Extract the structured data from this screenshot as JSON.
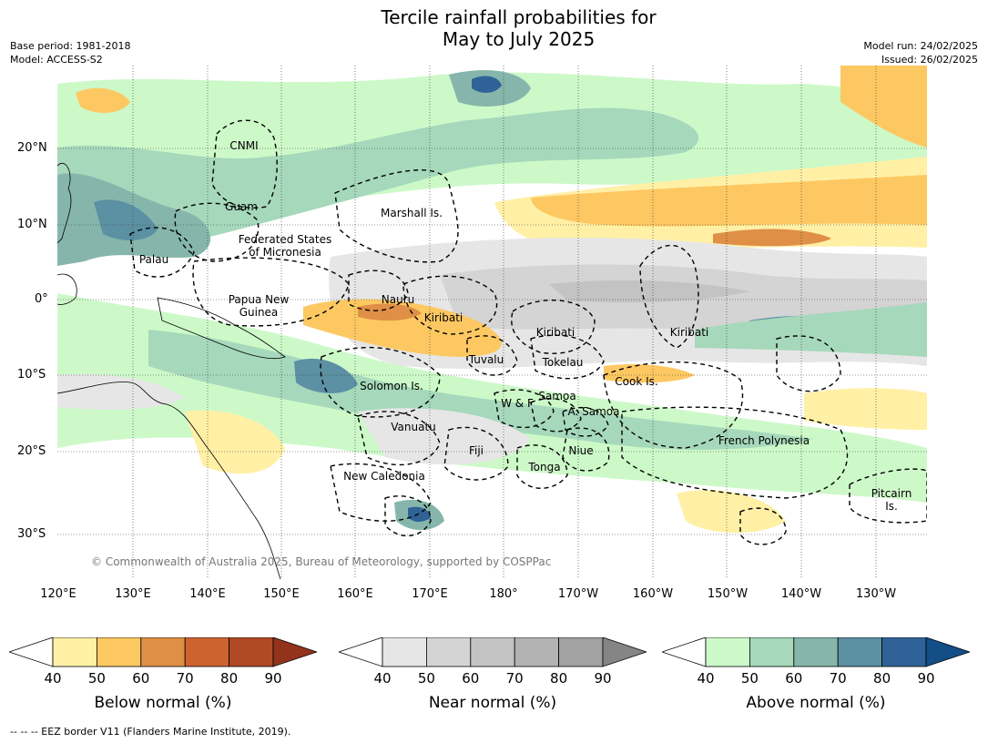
{
  "title": {
    "line1": "Tercile rainfall probabilities for",
    "line2": "May to July 2025"
  },
  "meta": {
    "base_period": "Base period: 1981-2018",
    "model": "Model: ACCESS-S2",
    "model_run": "Model run: 24/02/2025",
    "issued": "Issued: 26/02/2025"
  },
  "map": {
    "lat_ticks": [
      "20°N",
      "10°N",
      "0°",
      "10°S",
      "20°S",
      "30°S"
    ],
    "lon_ticks": [
      "120°E",
      "130°E",
      "140°E",
      "150°E",
      "160°E",
      "170°E",
      "180°",
      "170°W",
      "160°W",
      "150°W",
      "140°W",
      "130°W"
    ],
    "regions": [
      "CNMI",
      "Guam",
      "Marshall Is.",
      "Federated States\nof Micronesia",
      "Palau",
      "Papua New\nGuinea",
      "Nauru",
      "Kiribati",
      "Kiribati",
      "Kiribati",
      "Tuvalu",
      "Tokelau",
      "Solomon Is.",
      "Cook Is.",
      "Samoa",
      "W & F",
      "A. Samoa",
      "Vanuatu",
      "Fiji",
      "Niue",
      "Tonga",
      "French Polynesia",
      "New Caledonia",
      "Pitcairn\nIs."
    ],
    "copyright": "© Commonwealth of Australia 2025, Bureau of Meteorology, supported by COSPPac"
  },
  "legends": [
    {
      "label": "Below normal (%)",
      "ticks": [
        "40",
        "50",
        "60",
        "70",
        "80",
        "90"
      ],
      "colors": [
        "#ffffff",
        "#fff0a6",
        "#fdc862",
        "#df8f46",
        "#cd6430",
        "#b04a24",
        "#94331c"
      ]
    },
    {
      "label": "Near normal (%)",
      "ticks": [
        "40",
        "50",
        "60",
        "70",
        "80",
        "90"
      ],
      "colors": [
        "#ffffff",
        "#e6e6e6",
        "#d4d4d4",
        "#c3c3c3",
        "#b3b3b3",
        "#a2a2a2",
        "#858585"
      ]
    },
    {
      "label": "Above normal (%)",
      "ticks": [
        "40",
        "50",
        "60",
        "70",
        "80",
        "90"
      ],
      "colors": [
        "#ffffff",
        "#cdf9c9",
        "#a6d8bb",
        "#86b6ab",
        "#5c90a3",
        "#2f6397",
        "#134e86"
      ]
    }
  ],
  "footer": "--  --  -- EEZ border V11 (Flanders Marine Institute, 2019)."
}
